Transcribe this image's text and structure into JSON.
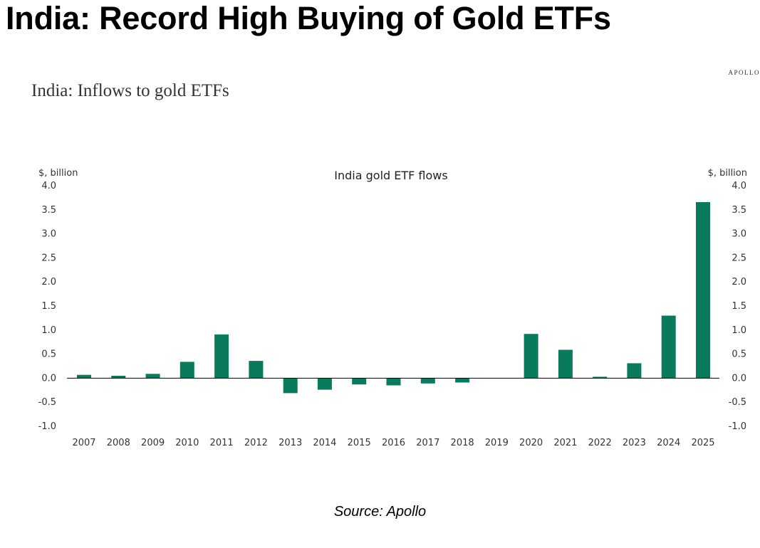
{
  "header": {
    "headline": "India: Record High Buying of Gold ETFs",
    "brand": "APOLLO",
    "subtitle": "India: Inflows to gold ETFs"
  },
  "footer": {
    "source": "Source: Apollo"
  },
  "colors": {
    "bar": "#0a7a5c",
    "axis_text": "#333333",
    "zero_line": "#000000"
  },
  "chart_data": {
    "type": "bar",
    "title": "India gold ETF flows",
    "ylabel_left": "$, billion",
    "ylabel_right": "$, billion",
    "xlabel": "",
    "ylim": [
      -1.0,
      4.0
    ],
    "yticks": [
      "4.0",
      "3.5",
      "3.0",
      "2.5",
      "2.0",
      "1.5",
      "1.0",
      "0.5",
      "0.0",
      "-0.5",
      "-1.0"
    ],
    "categories": [
      "2007",
      "2008",
      "2009",
      "2010",
      "2011",
      "2012",
      "2013",
      "2014",
      "2015",
      "2016",
      "2017",
      "2018",
      "2019",
      "2020",
      "2021",
      "2022",
      "2023",
      "2024",
      "2025"
    ],
    "values": [
      0.07,
      0.05,
      0.09,
      0.34,
      0.91,
      0.36,
      -0.31,
      -0.24,
      -0.13,
      -0.15,
      -0.11,
      -0.09,
      0.0,
      0.92,
      0.59,
      0.03,
      0.31,
      1.3,
      3.66
    ],
    "grid": false,
    "legend": "none"
  }
}
